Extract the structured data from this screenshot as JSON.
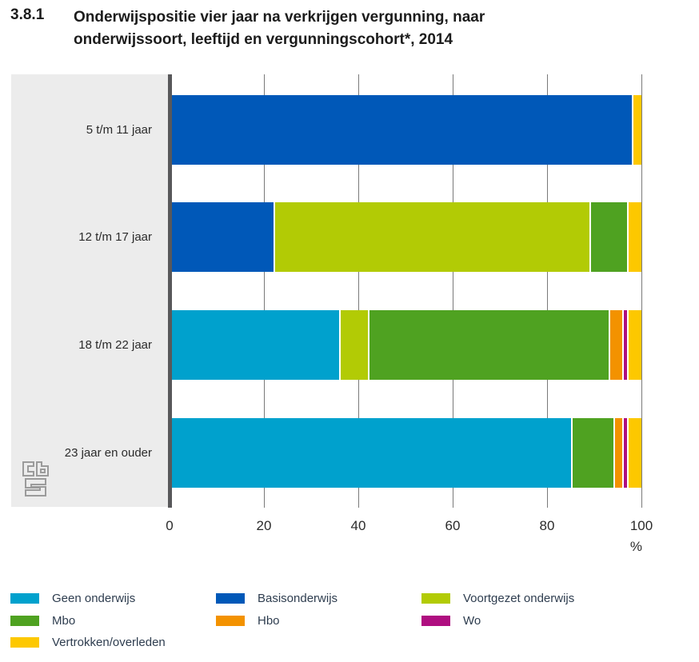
{
  "title": {
    "number": "3.8.1",
    "line1": "Onderwijspositie vier jaar na verkrijgen vergunning, naar",
    "line2": "onderwijssoort, leeftijd en vergunningscohort*, 2014"
  },
  "chart_data": {
    "type": "bar",
    "orientation": "horizontal",
    "stacked": true,
    "categories": [
      "5 t/m 11 jaar",
      "12 t/m 17 jaar",
      "18 t/m 22 jaar",
      "23 jaar en ouder"
    ],
    "series": [
      {
        "name": "Geen onderwijs",
        "color": "#00a1cd",
        "values": [
          0,
          0,
          36,
          85
        ]
      },
      {
        "name": "Basisonderwijs",
        "color": "#0058b8",
        "values": [
          98,
          22,
          0,
          0
        ]
      },
      {
        "name": "Voortgezet onderwijs",
        "color": "#b2cb05",
        "values": [
          0,
          67,
          6,
          0
        ]
      },
      {
        "name": "Mbo",
        "color": "#4fa221",
        "values": [
          0,
          8,
          51,
          9
        ]
      },
      {
        "name": "Hbo",
        "color": "#f39200",
        "values": [
          0,
          0,
          3,
          2
        ]
      },
      {
        "name": "Wo",
        "color": "#af0e80",
        "values": [
          0,
          0,
          1,
          1
        ]
      },
      {
        "name": "Vertrokken/overleden",
        "color": "#fdc800",
        "values": [
          2,
          3,
          3,
          3
        ]
      }
    ],
    "xlabel": "%",
    "xlim": [
      0,
      100
    ],
    "xticks": [
      0,
      20,
      40,
      60,
      80,
      100
    ],
    "grid": true,
    "legend_position": "bottom"
  },
  "colors": {
    "panel": "#ececec",
    "axis_line": "#58585a",
    "gridline": "#7a7a7a",
    "title_text": "#1c1c1c",
    "legend_text": "#2e3d4f"
  },
  "logo": {
    "name": "cbs-logo"
  }
}
